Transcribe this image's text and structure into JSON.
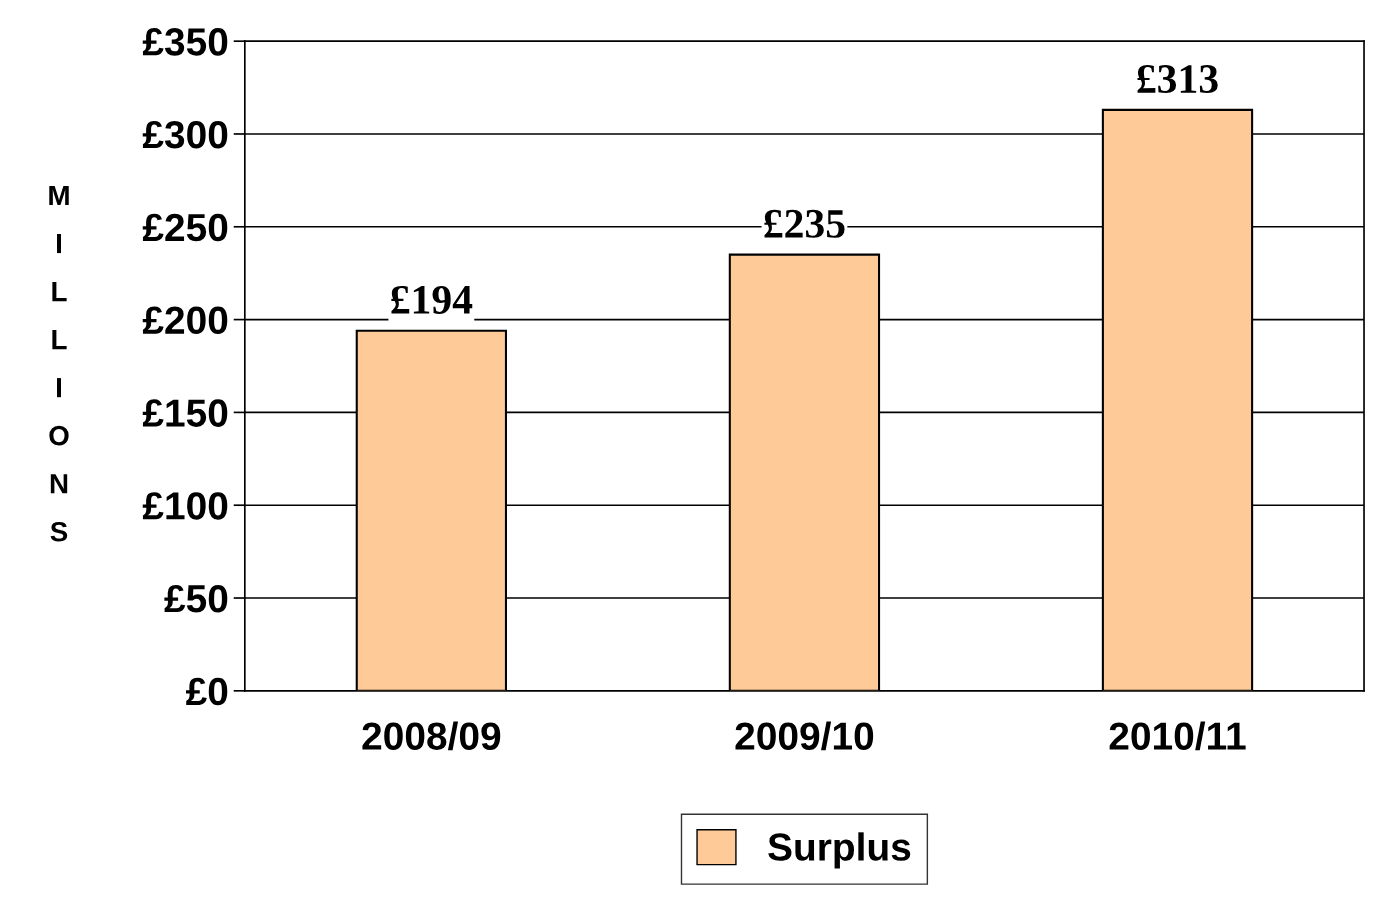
{
  "chart_data": {
    "type": "bar",
    "ylabel": "MILLIONS",
    "categories": [
      "2008/09",
      "2009/10",
      "2010/11"
    ],
    "series": [
      {
        "name": "Surplus",
        "color": "#fecb98",
        "values": [
          194,
          235,
          313
        ]
      }
    ],
    "value_labels": [
      "£194",
      "£235",
      "£313"
    ],
    "ylim": [
      0,
      350
    ],
    "yticks": [
      {
        "value": 0,
        "label": "£0"
      },
      {
        "value": 50,
        "label": "£50"
      },
      {
        "value": 100,
        "label": "£100"
      },
      {
        "value": 150,
        "label": "£150"
      },
      {
        "value": 200,
        "label": "£200"
      },
      {
        "value": 250,
        "label": "£250"
      },
      {
        "value": 300,
        "label": "£300"
      },
      {
        "value": 350,
        "label": "£350"
      }
    ],
    "grid": "y",
    "legend": "bottom"
  }
}
